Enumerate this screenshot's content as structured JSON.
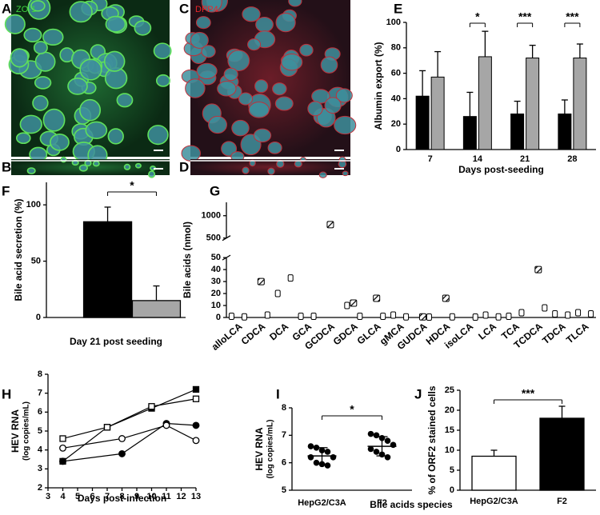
{
  "images": [
    {
      "panel": "A",
      "label": "ZO-1",
      "color": "#3fd43f"
    },
    {
      "panel": "B"
    },
    {
      "panel": "C",
      "label": "DPP4",
      "color": "#e8262a"
    },
    {
      "panel": "D"
    }
  ],
  "chart_data": [
    {
      "panel": "E",
      "type": "bar",
      "categories": [
        "7",
        "14",
        "21",
        "28"
      ],
      "series": [
        {
          "color": "#000000",
          "values": [
            42,
            26,
            28,
            28
          ],
          "errors": [
            20,
            19,
            10,
            11
          ]
        },
        {
          "color": "#a6a6a6",
          "values": [
            57,
            73,
            72,
            72
          ],
          "errors": [
            20,
            20,
            10,
            11
          ]
        }
      ],
      "significance": [
        null,
        "*",
        "***",
        "***"
      ],
      "ylim": [
        0,
        100
      ],
      "yticks": [
        0,
        20,
        40,
        60,
        80,
        100
      ],
      "ylabel": "Albumin export (%)",
      "xlabel": "Days post-seeding"
    },
    {
      "panel": "F",
      "type": "bar",
      "values": [
        85,
        15
      ],
      "errors": [
        13,
        13
      ],
      "colors": [
        "#000000",
        "#a6a6a6"
      ],
      "significance": "*",
      "ylim": [
        0,
        120
      ],
      "yticks": [
        0,
        50,
        100
      ],
      "ylabel": "Bile acid secretion (%)",
      "xlabel": "Day 21 post seeding"
    },
    {
      "panel": "G",
      "type": "box",
      "categories": [
        "alloLCA",
        "CDCA",
        "DCA",
        "GCA",
        "GCDCA",
        "GDCA",
        "GLCA",
        "gMCA",
        "GUDCA",
        "HDCA",
        "isoLCA",
        "LCA",
        "TCA",
        "TCDCA",
        "TDCA",
        "TLCA"
      ],
      "series": [
        {
          "color": "#ffffff",
          "hatch": false,
          "values": [
            1,
            null,
            20,
            1,
            null,
            10,
            null,
            2,
            null,
            null,
            null,
            2,
            1,
            null,
            3,
            4
          ]
        },
        {
          "color": "#ffffff",
          "hatch": true,
          "values": [
            null,
            30,
            null,
            null,
            800,
            12,
            16,
            null,
            0.5,
            16,
            null,
            null,
            null,
            40,
            null,
            null
          ]
        },
        {
          "color": "#ffffff",
          "hatch": false,
          "values": [
            0.5,
            2,
            33,
            1,
            null,
            1,
            1,
            0.5,
            0.3,
            0.5,
            0.3,
            0.5,
            4,
            8,
            2,
            3
          ]
        }
      ],
      "ylim": [
        0,
        1300
      ],
      "axis_break": [
        50,
        500
      ],
      "yticks": [
        0,
        10,
        20,
        30,
        40,
        50,
        500,
        1000
      ],
      "ylabel": "Bile acids (nmol)",
      "xlabel": "Bile acids species"
    },
    {
      "panel": "H",
      "type": "line",
      "series": [
        {
          "color": "#000000",
          "marker": "square",
          "marker_fill": "#000000",
          "x": [
            4,
            7,
            10,
            13
          ],
          "values": [
            3.4,
            5.2,
            6.2,
            7.2
          ]
        },
        {
          "color": "#000000",
          "marker": "square",
          "marker_fill": "#ffffff",
          "x": [
            4,
            7,
            10,
            13
          ],
          "values": [
            4.6,
            5.2,
            6.3,
            6.7
          ]
        },
        {
          "color": "#000000",
          "marker": "circle",
          "marker_fill": "#000000",
          "x": [
            4,
            8,
            11,
            13
          ],
          "values": [
            3.4,
            3.8,
            5.4,
            5.3
          ]
        },
        {
          "color": "#000000",
          "marker": "circle",
          "marker_fill": "#ffffff",
          "x": [
            4,
            8,
            11,
            13
          ],
          "values": [
            4.1,
            4.6,
            5.3,
            4.5
          ]
        }
      ],
      "xlim": [
        3,
        13
      ],
      "xticks": [
        3,
        4,
        5,
        6,
        7,
        8,
        9,
        10,
        11,
        12,
        13
      ],
      "ylim": [
        2,
        8
      ],
      "yticks": [
        2,
        3,
        4,
        5,
        6,
        7,
        8
      ],
      "ylabel": "HEV RNA",
      "ylabel2": "(log copies/mL)",
      "xlabel": "Days post-infection"
    },
    {
      "panel": "I",
      "type": "strip",
      "categories": [
        "HepG2/C3A",
        "F2"
      ],
      "points": [
        [
          6.6,
          6.55,
          6.45,
          6.4,
          6.2,
          6.2,
          6.0,
          5.95,
          5.9
        ],
        [
          7.05,
          7.0,
          6.9,
          6.8,
          6.65,
          6.5,
          6.4,
          6.3,
          6.2
        ]
      ],
      "means": [
        6.25,
        6.6
      ],
      "sd": [
        0.3,
        0.35
      ],
      "significance": "*",
      "ylim": [
        5,
        8
      ],
      "yticks": [
        5,
        6,
        7,
        8
      ],
      "ylabel": "HEV RNA",
      "ylabel2": "(log copies/mL)"
    },
    {
      "panel": "J",
      "type": "bar",
      "categories": [
        "HepG2/C3A",
        "F2"
      ],
      "values": [
        8.5,
        18
      ],
      "errors": [
        1.5,
        3
      ],
      "colors": [
        "#ffffff",
        "#000000"
      ],
      "significance": "***",
      "ylim": [
        0,
        25
      ],
      "yticks": [
        0,
        5,
        10,
        15,
        20,
        25
      ],
      "ylabel": "% of ORF2 stained cells"
    }
  ]
}
